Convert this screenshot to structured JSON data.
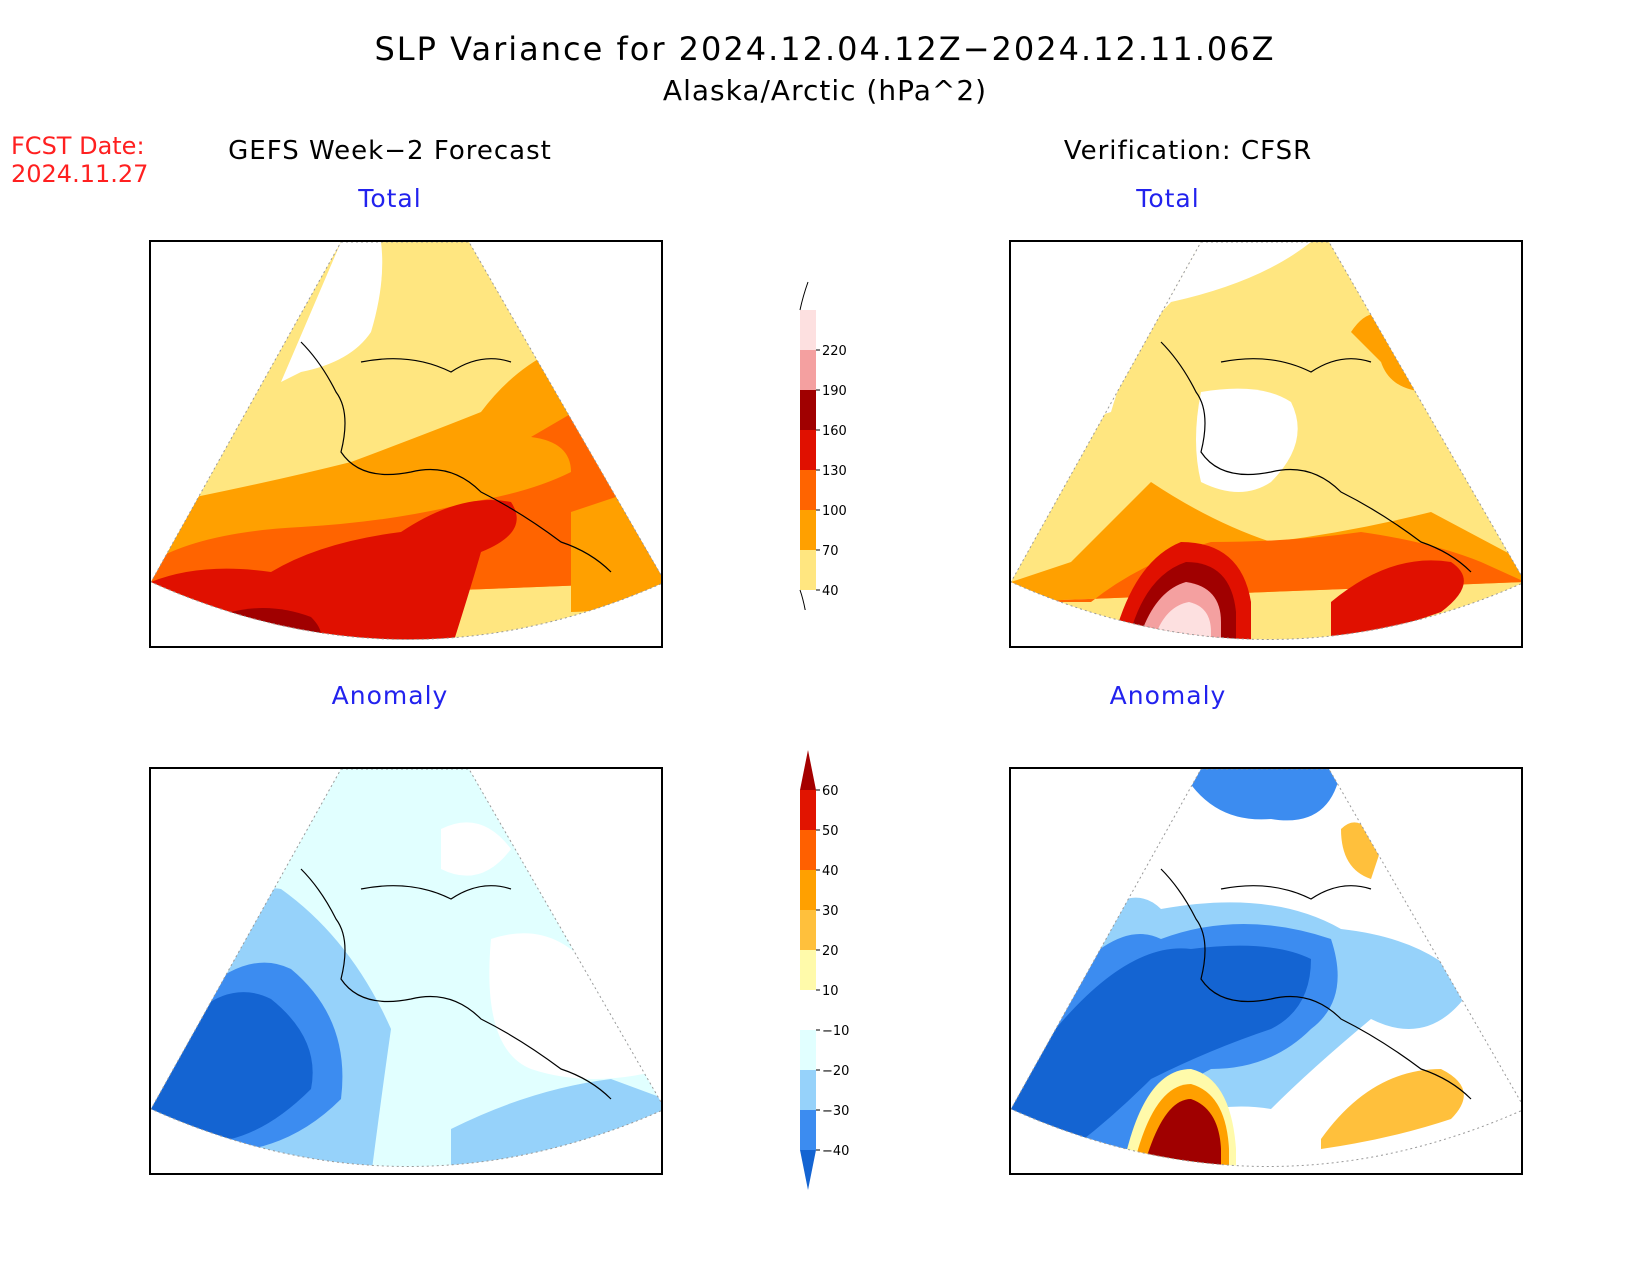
{
  "header": {
    "title": "SLP Variance for 2024.12.04.12Z−2024.12.11.06Z",
    "subtitle": "Alaska/Arctic (hPa^2)",
    "fcst_label": "FCST Date:",
    "fcst_date": "2024.11.27"
  },
  "columns": {
    "left": "GEFS Week−2 Forecast",
    "right": "Verification: CFSR"
  },
  "panels": {
    "forecast_total": "Total",
    "forecast_anomaly": "Anomaly",
    "verification_total": "Total",
    "verification_anomaly": "Anomaly"
  },
  "colorbars": {
    "total": {
      "levels": [
        "40",
        "70",
        "100",
        "130",
        "160",
        "190",
        "220"
      ],
      "colors": [
        "#ffe680",
        "#ffa000",
        "#ff6400",
        "#e01000",
        "#a00000",
        "#f4a0a0",
        "#fde0e0"
      ]
    },
    "anomaly": {
      "levels": [
        "−40",
        "−30",
        "−20",
        "−10",
        "10",
        "20",
        "30",
        "40",
        "50",
        "60"
      ],
      "colors": [
        "#1464d2",
        "#3c8cf0",
        "#96d2fa",
        "#e1ffff",
        "#ffffff",
        "#fffaaa",
        "#ffc03c",
        "#ffa000",
        "#ff6000",
        "#e11400",
        "#a50000"
      ]
    }
  }
}
